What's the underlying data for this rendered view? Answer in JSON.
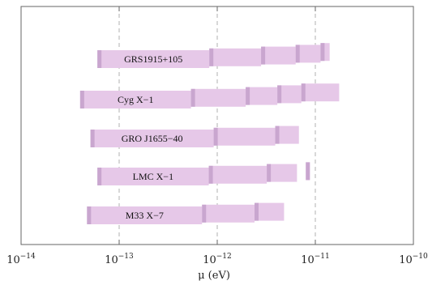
{
  "chart_data": {
    "type": "bar",
    "xlabel": "μ (eV)",
    "ylabel": "",
    "xscale": "log",
    "xlim": [
      1e-14,
      1e-10
    ],
    "grid": "vertical dashed at decades",
    "ticks": [
      {
        "value": 1e-14,
        "base": "10",
        "exp": "−14"
      },
      {
        "value": 1e-13,
        "base": "10",
        "exp": "−13"
      },
      {
        "value": 1e-12,
        "base": "10",
        "exp": "−12"
      },
      {
        "value": 1e-11,
        "base": "10",
        "exp": "−11"
      },
      {
        "value": 1e-10,
        "base": "10",
        "exp": "−10"
      }
    ],
    "colors": {
      "band": "#e6c8e8",
      "edge": "#c9a6cf",
      "grid": "#b0b0b0",
      "frame": "#666666"
    },
    "series": [
      {
        "label": "GRS1915+105",
        "segments": [
          {
            "from": 6e-14,
            "to": 8.3e-13
          },
          {
            "from": 8.3e-13,
            "to": 2.8e-12
          },
          {
            "from": 2.8e-12,
            "to": 6.3e-12
          },
          {
            "from": 6.3e-12,
            "to": 1.13e-11
          },
          {
            "from": 1.13e-11,
            "to": 1.4e-11
          }
        ]
      },
      {
        "label": "Cyg X−1",
        "segments": [
          {
            "from": 4e-14,
            "to": 5.4e-13
          },
          {
            "from": 5.4e-13,
            "to": 1.95e-12
          },
          {
            "from": 1.95e-12,
            "to": 4.1e-12
          },
          {
            "from": 4.1e-12,
            "to": 7.2e-12
          },
          {
            "from": 7.2e-12,
            "to": 1.75e-11
          }
        ]
      },
      {
        "label": "GRO J1655−40",
        "segments": [
          {
            "from": 5.1e-14,
            "to": 9.2e-13
          },
          {
            "from": 9.2e-13,
            "to": 3.9e-12
          },
          {
            "from": 3.9e-12,
            "to": 6.8e-12
          }
        ]
      },
      {
        "label": "LMC X−1",
        "segments": [
          {
            "from": 6e-14,
            "to": 8.2e-13
          },
          {
            "from": 8.2e-13,
            "to": 3.2e-12
          },
          {
            "from": 3.2e-12,
            "to": 6.5e-12
          },
          {
            "from": 8e-12,
            "to": 8.8e-12
          }
        ]
      },
      {
        "label": "M33 X−7",
        "segments": [
          {
            "from": 4.7e-14,
            "to": 7e-13
          },
          {
            "from": 7e-13,
            "to": 2.4e-12
          },
          {
            "from": 2.4e-12,
            "to": 4.8e-12
          }
        ]
      }
    ]
  }
}
